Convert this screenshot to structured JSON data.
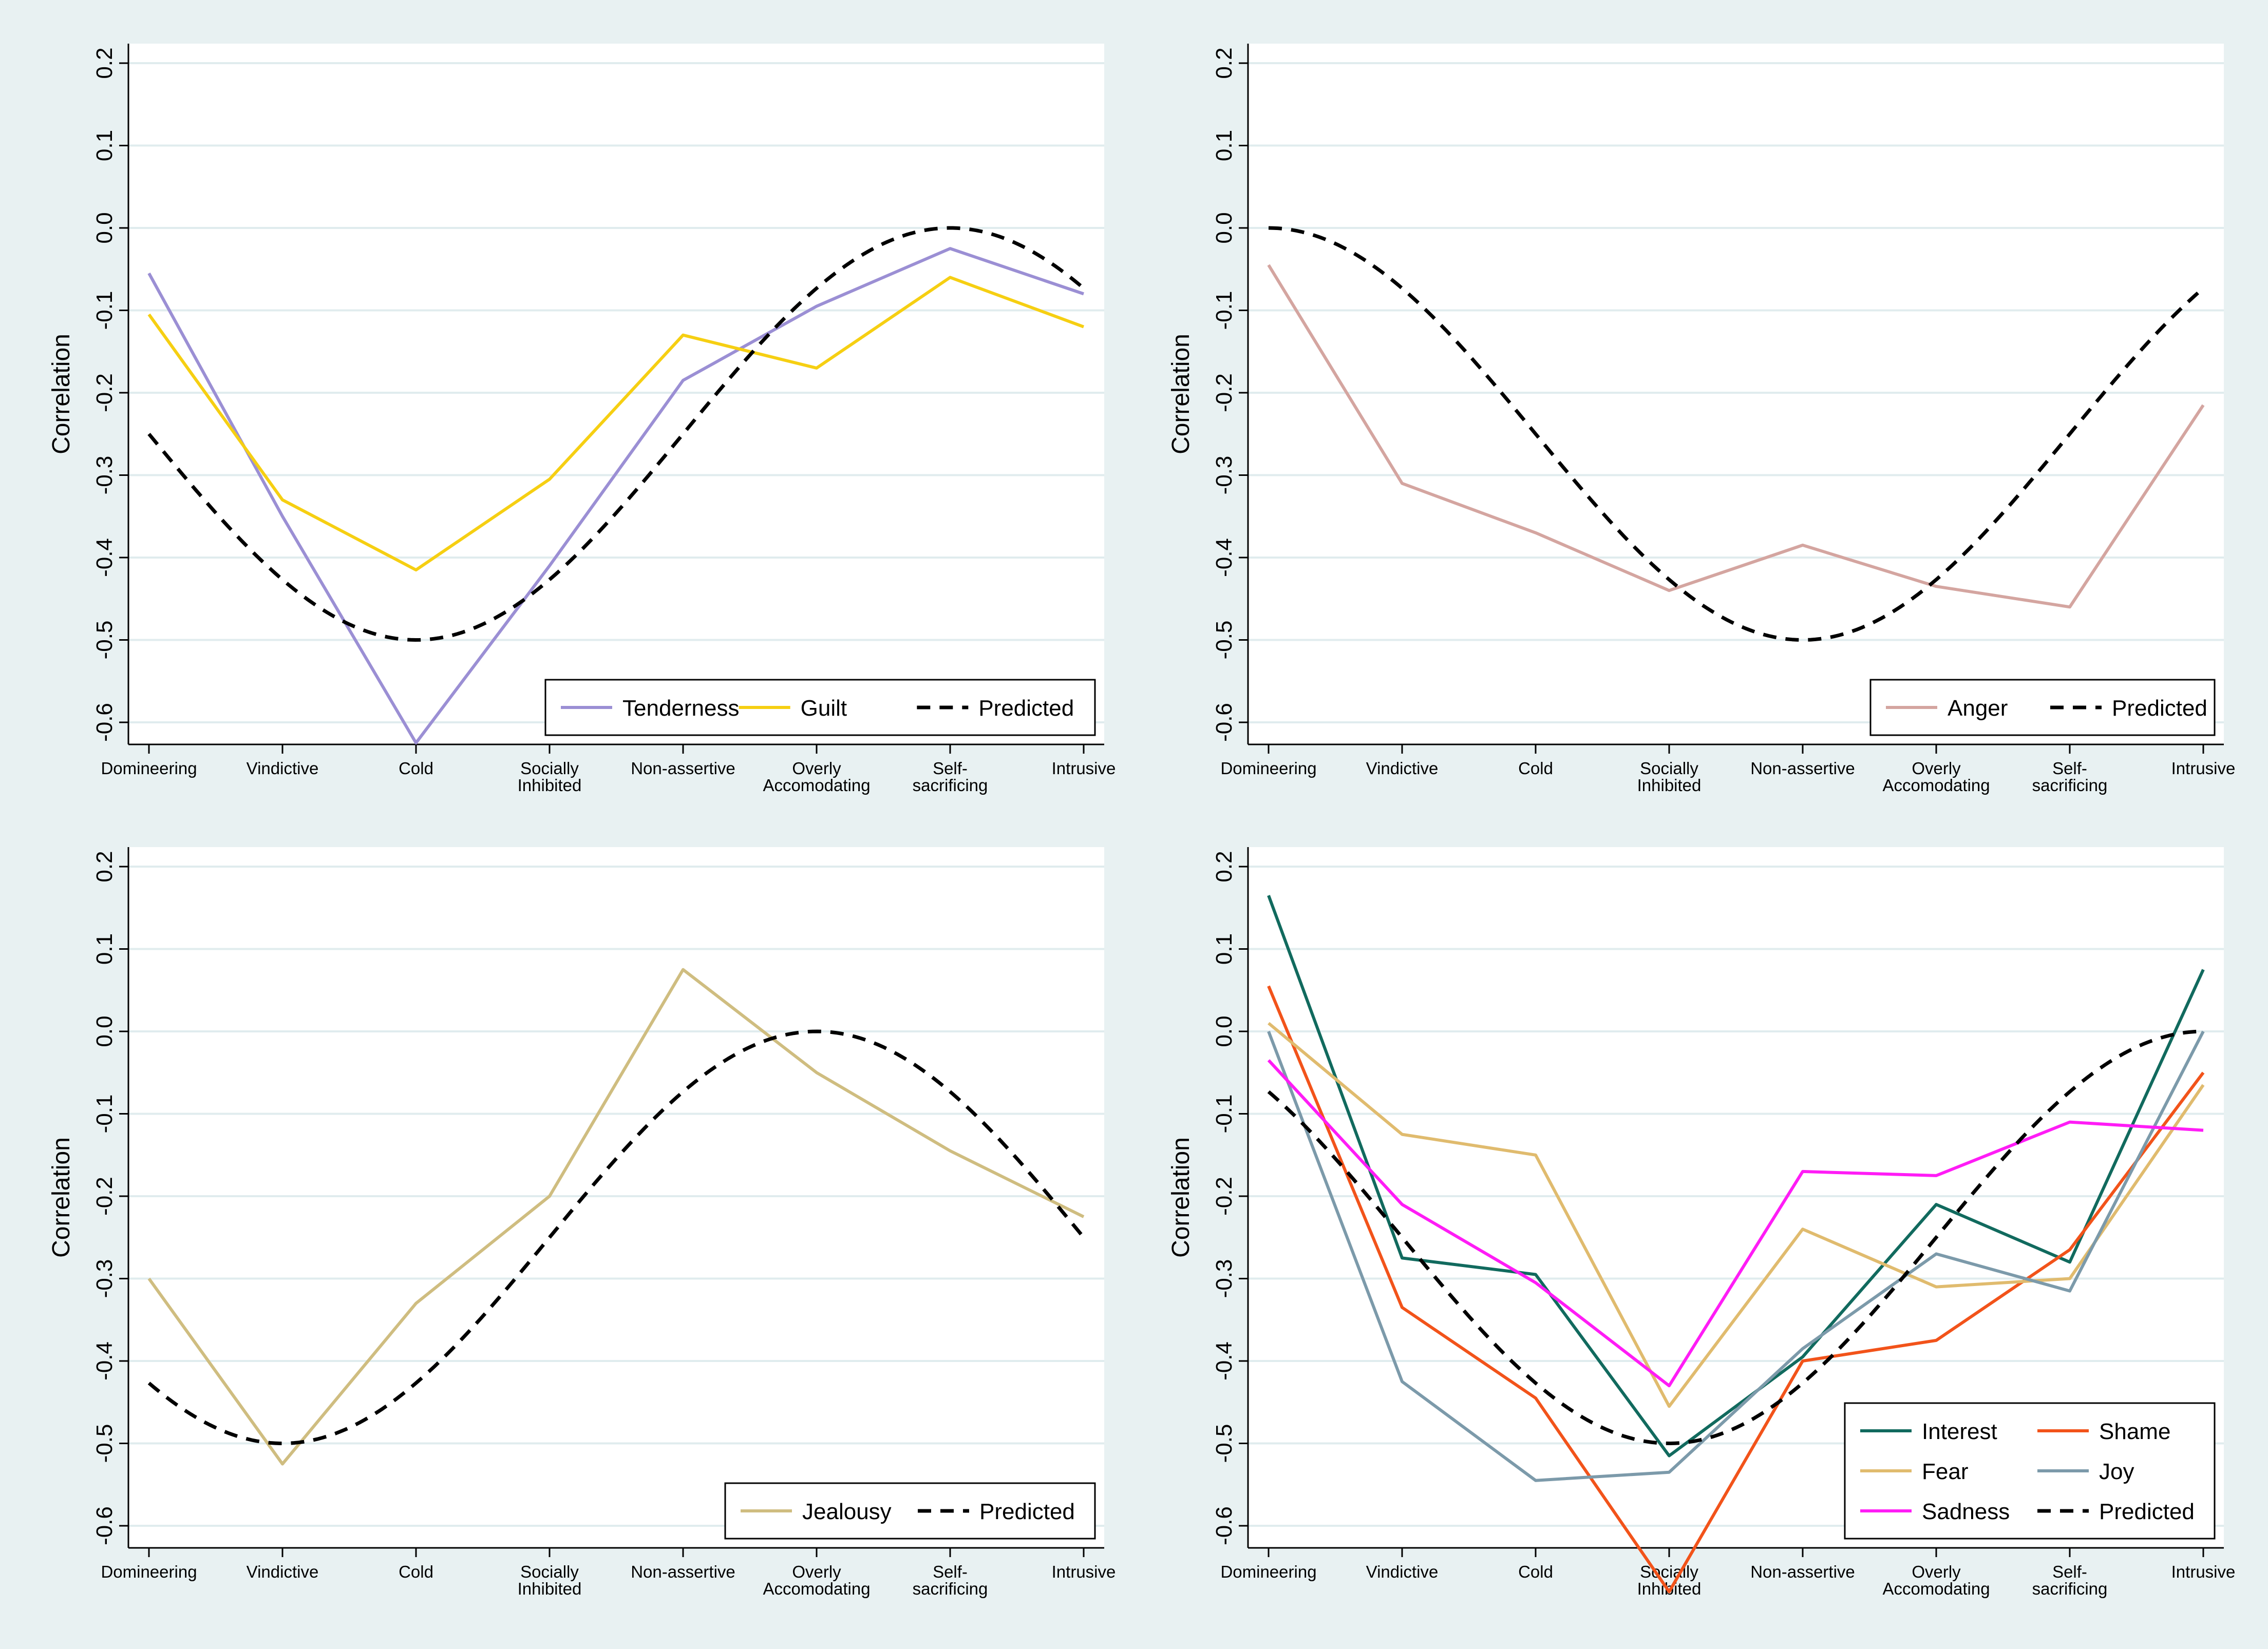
{
  "chart_data": [
    {
      "type": "line",
      "position": "top-left",
      "ylabel": "Correlation",
      "xlabel": "",
      "ylim": [
        -0.6,
        0.2
      ],
      "categories": [
        "Domineering",
        "Vindictive",
        "Cold",
        "Socially Inhibited",
        "Non-assertive",
        "Overly Accomodating",
        "Self-sacrificing",
        "Intrusive"
      ],
      "yticks": [
        "0.2",
        "0.1",
        "0.0",
        "-0.1",
        "-0.2",
        "-0.3",
        "-0.4",
        "-0.5",
        "-0.6"
      ],
      "legend_columns": 3,
      "series": [
        {
          "name": "Tenderness",
          "color": "#9b8fd4",
          "dashed": false,
          "values": [
            -0.055,
            -0.35,
            -0.625,
            -0.41,
            -0.185,
            -0.095,
            -0.025,
            -0.08
          ]
        },
        {
          "name": "Guilt",
          "color": "#f6cf12",
          "dashed": false,
          "values": [
            -0.105,
            -0.33,
            -0.415,
            -0.305,
            -0.13,
            -0.17,
            -0.06,
            -0.12
          ]
        },
        {
          "name": "Predicted",
          "color": "#000000",
          "dashed": true,
          "peak_index": 6,
          "values": [
            -0.25,
            -0.4268,
            -0.5,
            -0.4268,
            -0.25,
            -0.0732,
            0.0,
            -0.0732
          ]
        }
      ]
    },
    {
      "type": "line",
      "position": "top-right",
      "ylabel": "Correlation",
      "xlabel": "",
      "ylim": [
        -0.6,
        0.2
      ],
      "categories": [
        "Domineering",
        "Vindictive",
        "Cold",
        "Socially Inhibited",
        "Non-assertive",
        "Overly Accomodating",
        "Self-sacrificing",
        "Intrusive"
      ],
      "yticks": [
        "0.2",
        "0.1",
        "0.0",
        "-0.1",
        "-0.2",
        "-0.3",
        "-0.4",
        "-0.5",
        "-0.6"
      ],
      "legend_columns": 2,
      "series": [
        {
          "name": "Anger",
          "color": "#d4a5a0",
          "dashed": false,
          "values": [
            -0.045,
            -0.31,
            -0.37,
            -0.44,
            -0.385,
            -0.435,
            -0.46,
            -0.215
          ]
        },
        {
          "name": "Predicted",
          "color": "#000000",
          "dashed": true,
          "peak_index": 0,
          "values": [
            0.0,
            -0.0732,
            -0.25,
            -0.4268,
            -0.5,
            -0.4268,
            -0.25,
            -0.0732
          ]
        }
      ]
    },
    {
      "type": "line",
      "position": "bottom-left",
      "ylabel": "Correlation",
      "xlabel": "",
      "ylim": [
        -0.6,
        0.2
      ],
      "categories": [
        "Domineering",
        "Vindictive",
        "Cold",
        "Socially Inhibited",
        "Non-assertive",
        "Overly Accomodating",
        "Self-sacrificing",
        "Intrusive"
      ],
      "yticks": [
        "0.2",
        "0.1",
        "0.0",
        "-0.1",
        "-0.2",
        "-0.3",
        "-0.4",
        "-0.5",
        "-0.6"
      ],
      "legend_columns": 2,
      "series": [
        {
          "name": "Jealousy",
          "color": "#cfbd80",
          "dashed": false,
          "values": [
            -0.3,
            -0.525,
            -0.33,
            -0.2,
            0.075,
            -0.05,
            -0.145,
            -0.225
          ]
        },
        {
          "name": "Predicted",
          "color": "#000000",
          "dashed": true,
          "peak_index": 5,
          "values": [
            -0.4268,
            -0.5,
            -0.4268,
            -0.25,
            -0.0732,
            0.0,
            -0.0732,
            -0.25
          ]
        }
      ]
    },
    {
      "type": "line",
      "position": "bottom-right",
      "ylabel": "Correlation",
      "xlabel": "",
      "ylim": [
        -0.6,
        0.2
      ],
      "categories": [
        "Domineering",
        "Vindictive",
        "Cold",
        "Socially Inhibited",
        "Non-assertive",
        "Overly Accomodating",
        "Self-sacrificing",
        "Intrusive"
      ],
      "yticks": [
        "0.2",
        "0.1",
        "0.0",
        "-0.1",
        "-0.2",
        "-0.3",
        "-0.4",
        "-0.5",
        "-0.6"
      ],
      "legend_columns": 2,
      "series": [
        {
          "name": "Interest",
          "color": "#116a5e",
          "dashed": false,
          "values": [
            0.165,
            -0.275,
            -0.295,
            -0.515,
            -0.395,
            -0.21,
            -0.28,
            0.075
          ]
        },
        {
          "name": "Shame",
          "color": "#f2531a",
          "dashed": false,
          "values": [
            0.055,
            -0.335,
            -0.445,
            -0.68,
            -0.4,
            -0.375,
            -0.265,
            -0.05
          ]
        },
        {
          "name": "Fear",
          "color": "#e0bb6e",
          "dashed": false,
          "values": [
            0.01,
            -0.125,
            -0.15,
            -0.455,
            -0.24,
            -0.31,
            -0.3,
            -0.065
          ]
        },
        {
          "name": "Joy",
          "color": "#7c9aaa",
          "dashed": false,
          "values": [
            0.0,
            -0.425,
            -0.545,
            -0.535,
            -0.385,
            -0.27,
            -0.315,
            0.0
          ]
        },
        {
          "name": "Sadness",
          "color": "#ff1cf6",
          "dashed": false,
          "values": [
            -0.035,
            -0.21,
            -0.305,
            -0.43,
            -0.17,
            -0.175,
            -0.11,
            -0.12
          ]
        },
        {
          "name": "Predicted",
          "color": "#000000",
          "dashed": true,
          "peak_index": 7,
          "values": [
            -0.0732,
            -0.25,
            -0.4268,
            -0.5,
            -0.4268,
            -0.25,
            -0.0732,
            0.0
          ]
        }
      ]
    }
  ]
}
